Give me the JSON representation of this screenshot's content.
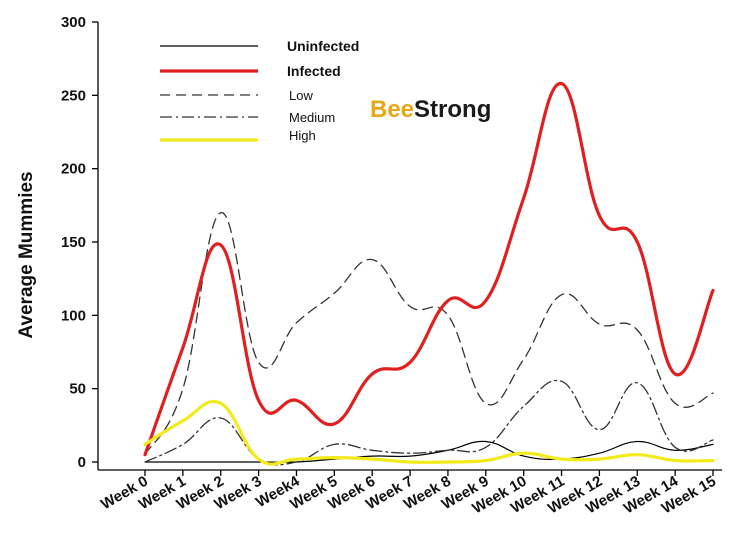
{
  "chart_data": {
    "type": "line",
    "title": "",
    "ylabel": "Average Mummies",
    "xlabel": "",
    "ylim": [
      0,
      300
    ],
    "yticks": [
      0,
      50,
      100,
      150,
      200,
      250,
      300
    ],
    "categories": [
      "Week 0",
      "Week 1",
      "Week 2",
      "Week 3",
      "Week4",
      "Week 5",
      "Week 6",
      "Week 7",
      "Week 8",
      "Week 9",
      "Week 10",
      "Week 11",
      "Week 12",
      "Week 13",
      "Week 14",
      "Week 15"
    ],
    "logo": {
      "part1": "Bee",
      "part2": "Strong"
    },
    "legend_placement": "top-left",
    "series": [
      {
        "name": "Uninfected",
        "color": "#000000",
        "style": "solid",
        "width": 1.2,
        "values": [
          0,
          0,
          0,
          0,
          0,
          2,
          4,
          4,
          8,
          14,
          4,
          2,
          6,
          14,
          8,
          12
        ]
      },
      {
        "name": "Infected",
        "color": "#e02020",
        "style": "solid",
        "width": 3.2,
        "values": [
          5,
          78,
          148,
          42,
          42,
          26,
          60,
          68,
          110,
          110,
          180,
          258,
          168,
          150,
          60,
          117
        ]
      },
      {
        "name": "Low",
        "color": "#333333",
        "style": "dash",
        "width": 1.3,
        "values": [
          5,
          50,
          170,
          68,
          95,
          115,
          138,
          106,
          100,
          40,
          70,
          114,
          94,
          90,
          40,
          47
        ]
      },
      {
        "name": "Medium",
        "color": "#333333",
        "style": "dashdot",
        "width": 1.3,
        "values": [
          0,
          12,
          30,
          2,
          0,
          12,
          8,
          6,
          8,
          10,
          38,
          55,
          22,
          54,
          10,
          15
        ]
      },
      {
        "name": "High",
        "color": "#f2ea1b",
        "style": "solid",
        "width": 3.2,
        "values": [
          12,
          28,
          40,
          2,
          2,
          3,
          2,
          0,
          0,
          1,
          6,
          2,
          2,
          5,
          1,
          1
        ]
      }
    ]
  }
}
